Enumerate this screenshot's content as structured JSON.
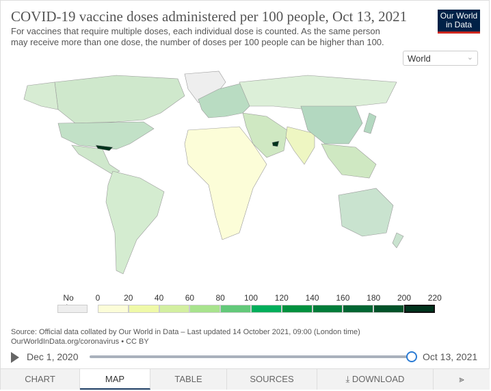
{
  "header": {
    "title": "COVID-19 vaccine doses administered per 100 people, Oct 13, 2021",
    "subtitle": "For vaccines that require multiple doses, each individual dose is counted. As the same person may receive more than one dose, the number of doses per 100 people can be higher than 100.",
    "logo": "Our World in Data"
  },
  "region_select": {
    "value": "World",
    "icon": "chevron-down-icon"
  },
  "legend": {
    "no_data_label": "No data",
    "no_data_color": "#eeeeee",
    "ticks": [
      "0",
      "20",
      "40",
      "60",
      "80",
      "100",
      "120",
      "140",
      "160",
      "180",
      "200",
      "220"
    ],
    "colors": [
      "#fcfdd8",
      "#eff9a8",
      "#d3efa0",
      "#a8e38d",
      "#63c97a",
      "#00ae5b",
      "#00913f",
      "#007d3a",
      "#006633",
      "#005229",
      "#00331c"
    ]
  },
  "source": {
    "line1": "Source: Official data collated by Our World in Data – Last updated 14 October 2021, 09:00 (London time)",
    "line2": "OurWorldInData.org/coronavirus • CC BY"
  },
  "timeline": {
    "start": "Dec 1, 2020",
    "end": "Oct 13, 2021",
    "position": 1.0
  },
  "tabs": [
    "CHART",
    "MAP",
    "TABLE",
    "SOURCES",
    "DOWNLOAD"
  ],
  "active_tab": "MAP",
  "share_icon": "share-icon"
}
